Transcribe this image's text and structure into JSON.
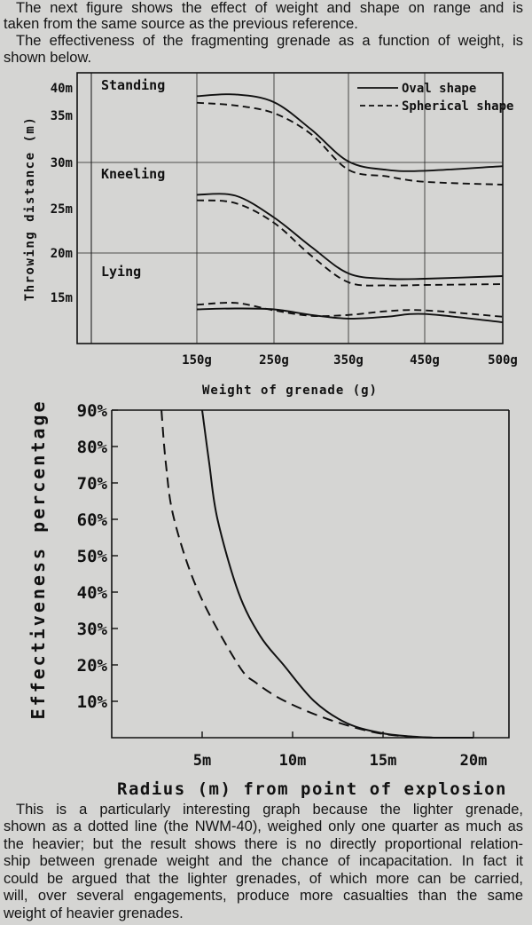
{
  "intro": {
    "lines": [
      "The next figure shows the effect of weight and shape on range and is",
      "taken from the same source as the previous reference.",
      "The effectiveness of the fragmenting grenade as a function of weight, is",
      "shown below."
    ]
  },
  "outro": {
    "lines": [
      "This is a particularly interesting graph because the lighter grenade,",
      "shown as a dotted line (the NWM-40), weighed only one quarter as much as",
      "the heavier; but the result shows there is no directly proportional relation-",
      "ship between grenade weight and the chance of incapacitation. In fact it",
      "could be argued that the lighter grenades, of which more can be carried,",
      "will, over several engagements, produce more casualties than the same",
      "weight of heavier grenades."
    ]
  },
  "chart_data": [
    {
      "type": "line",
      "title": "",
      "xlabel": "Weight of grenade (g)",
      "ylabel": "Throwing distance (m)",
      "x_ticks": [
        150,
        250,
        350,
        450,
        500
      ],
      "x_tick_labels": [
        "150g",
        "250g",
        "350g",
        "450g",
        "500g"
      ],
      "y_ticks": [
        40,
        35,
        30,
        25,
        20,
        15
      ],
      "y_tick_labels": [
        "40m",
        "35m",
        "30m",
        "25m",
        "20m",
        "15m"
      ],
      "ylim": [
        10,
        41
      ],
      "grid": true,
      "legend": {
        "position": "top-right",
        "entries": [
          "Oval shape",
          "Spherical shape"
        ]
      },
      "annotations": [
        "Standing",
        "Kneeling",
        "Lying"
      ],
      "x": [
        150,
        200,
        250,
        300,
        350,
        400,
        450,
        500
      ],
      "series": [
        {
          "name": "Standing - Oval shape",
          "style": "solid",
          "values": [
            38.5,
            38.8,
            37.4,
            33.5,
            30.1,
            29.2,
            29.1,
            29.6
          ]
        },
        {
          "name": "Standing - Spherical shape",
          "style": "dashed",
          "values": [
            37.3,
            36.8,
            35.4,
            33.0,
            29.2,
            28.5,
            27.9,
            27.6
          ]
        },
        {
          "name": "Kneeling - Oval shape",
          "style": "solid",
          "values": [
            26.5,
            26.4,
            24.0,
            20.7,
            17.7,
            17.1,
            17.1,
            17.4
          ]
        },
        {
          "name": "Kneeling - Spherical shape",
          "style": "dashed",
          "values": [
            25.9,
            25.6,
            23.4,
            19.7,
            16.7,
            16.35,
            16.4,
            16.5
          ]
        },
        {
          "name": "Lying - Oval shape",
          "style": "solid",
          "values": [
            13.7,
            13.8,
            13.7,
            13.1,
            12.7,
            12.9,
            13.2,
            12.3
          ]
        },
        {
          "name": "Lying - Spherical shape",
          "style": "dashed",
          "values": [
            14.2,
            14.4,
            13.6,
            13.0,
            13.1,
            13.5,
            13.6,
            12.9
          ]
        }
      ]
    },
    {
      "type": "line",
      "title": "",
      "xlabel": "Radius (m) from point of explosion",
      "ylabel": "Effectiveness percentage",
      "x_ticks": [
        5,
        10,
        15,
        20
      ],
      "x_tick_labels": [
        "5m",
        "10m",
        "15m",
        "20m"
      ],
      "y_ticks": [
        90,
        80,
        70,
        60,
        50,
        40,
        30,
        20,
        10
      ],
      "y_tick_labels": [
        "90%",
        "80%",
        "70%",
        "60%",
        "50%",
        "40%",
        "30%",
        "20%",
        "10%"
      ],
      "xlim": [
        0,
        22
      ],
      "ylim": [
        0,
        90
      ],
      "grid": false,
      "series": [
        {
          "name": "Heavier grenade",
          "style": "solid",
          "points": [
            [
              5,
              90
            ],
            [
              5.4,
              75
            ],
            [
              5.85,
              60
            ],
            [
              7,
              40
            ],
            [
              8.2,
              28
            ],
            [
              9.5,
              20
            ],
            [
              11.2,
              10
            ],
            [
              13,
              4
            ],
            [
              15,
              1.2
            ],
            [
              17,
              0.2
            ],
            [
              18,
              0
            ],
            [
              20,
              0
            ]
          ]
        },
        {
          "name": "NWM-40 (lighter grenade)",
          "style": "dashed",
          "points": [
            [
              2.75,
              90
            ],
            [
              3,
              75
            ],
            [
              3.45,
              60
            ],
            [
              4.8,
              40
            ],
            [
              7,
              20
            ],
            [
              8,
              15
            ],
            [
              9.6,
              10
            ],
            [
              12,
              5
            ],
            [
              14.5,
              1.5
            ],
            [
              16.5,
              0.3
            ],
            [
              18,
              0
            ]
          ]
        }
      ]
    }
  ]
}
